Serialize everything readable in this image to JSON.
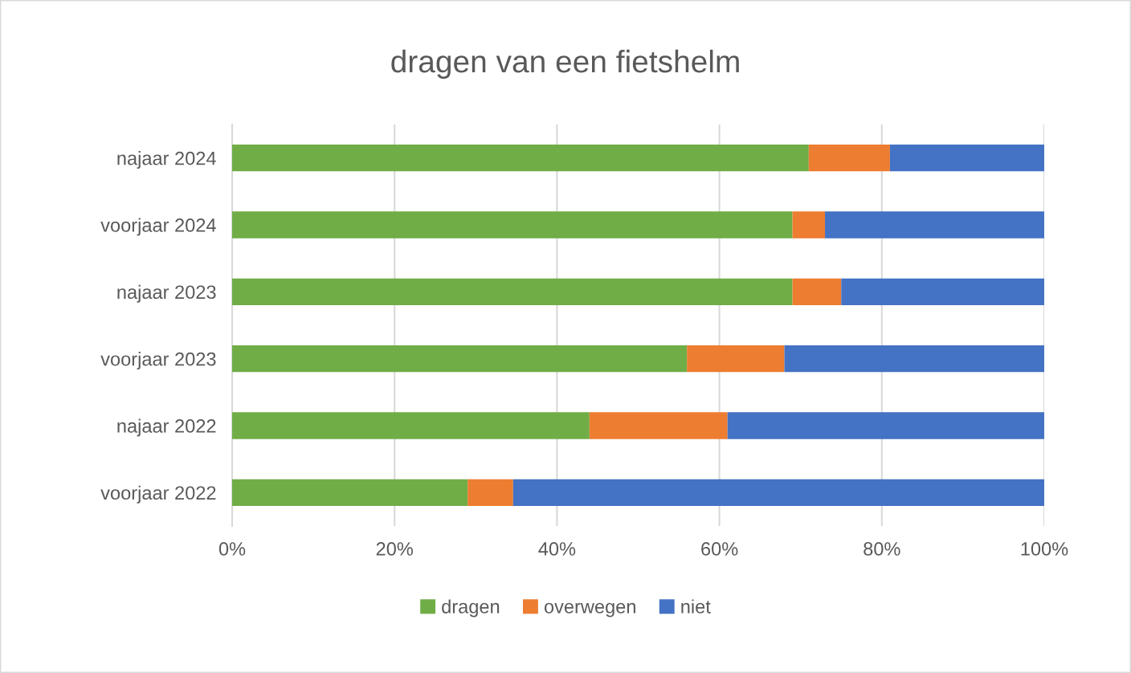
{
  "chart_data": {
    "type": "bar",
    "title": "dragen van een fietshelm",
    "orientation": "horizontal",
    "stacked": true,
    "categories": [
      "najaar 2024",
      "voorjaar 2024",
      "najaar 2023",
      "voorjaar 2023",
      "najaar 2022",
      "voorjaar 2022"
    ],
    "series": [
      {
        "name": "dragen",
        "color": "#70ad47",
        "values": [
          71,
          69,
          69,
          56,
          44,
          29
        ]
      },
      {
        "name": "overwegen",
        "color": "#ed7d31",
        "values": [
          10,
          4,
          6,
          12,
          17,
          5.6
        ]
      },
      {
        "name": "niet",
        "color": "#4472c4",
        "values": [
          19,
          27,
          25,
          32,
          39,
          65.4
        ]
      }
    ],
    "xlim": [
      0,
      100
    ],
    "xticks": [
      {
        "value": 0,
        "label": "0%"
      },
      {
        "value": 20,
        "label": "20%"
      },
      {
        "value": 40,
        "label": "40%"
      },
      {
        "value": 60,
        "label": "60%"
      },
      {
        "value": 80,
        "label": "80%"
      },
      {
        "value": 100,
        "label": "100%"
      }
    ],
    "grid": "x",
    "legend": "bottom"
  }
}
